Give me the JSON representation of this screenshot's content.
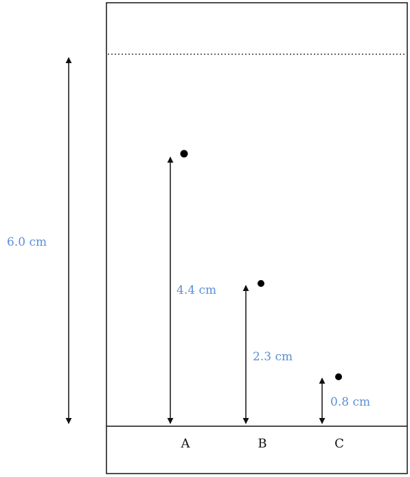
{
  "diagram": {
    "solvent_front_distance": "6.0 cm",
    "lanes": [
      {
        "label": "A",
        "distance": "4.4 cm"
      },
      {
        "label": "B",
        "distance": "2.3 cm"
      },
      {
        "label": "C",
        "distance": "0.8 cm"
      }
    ]
  },
  "colors": {
    "label_blue": "#5b8ed6",
    "line": "#111111",
    "spot": "#000000"
  }
}
